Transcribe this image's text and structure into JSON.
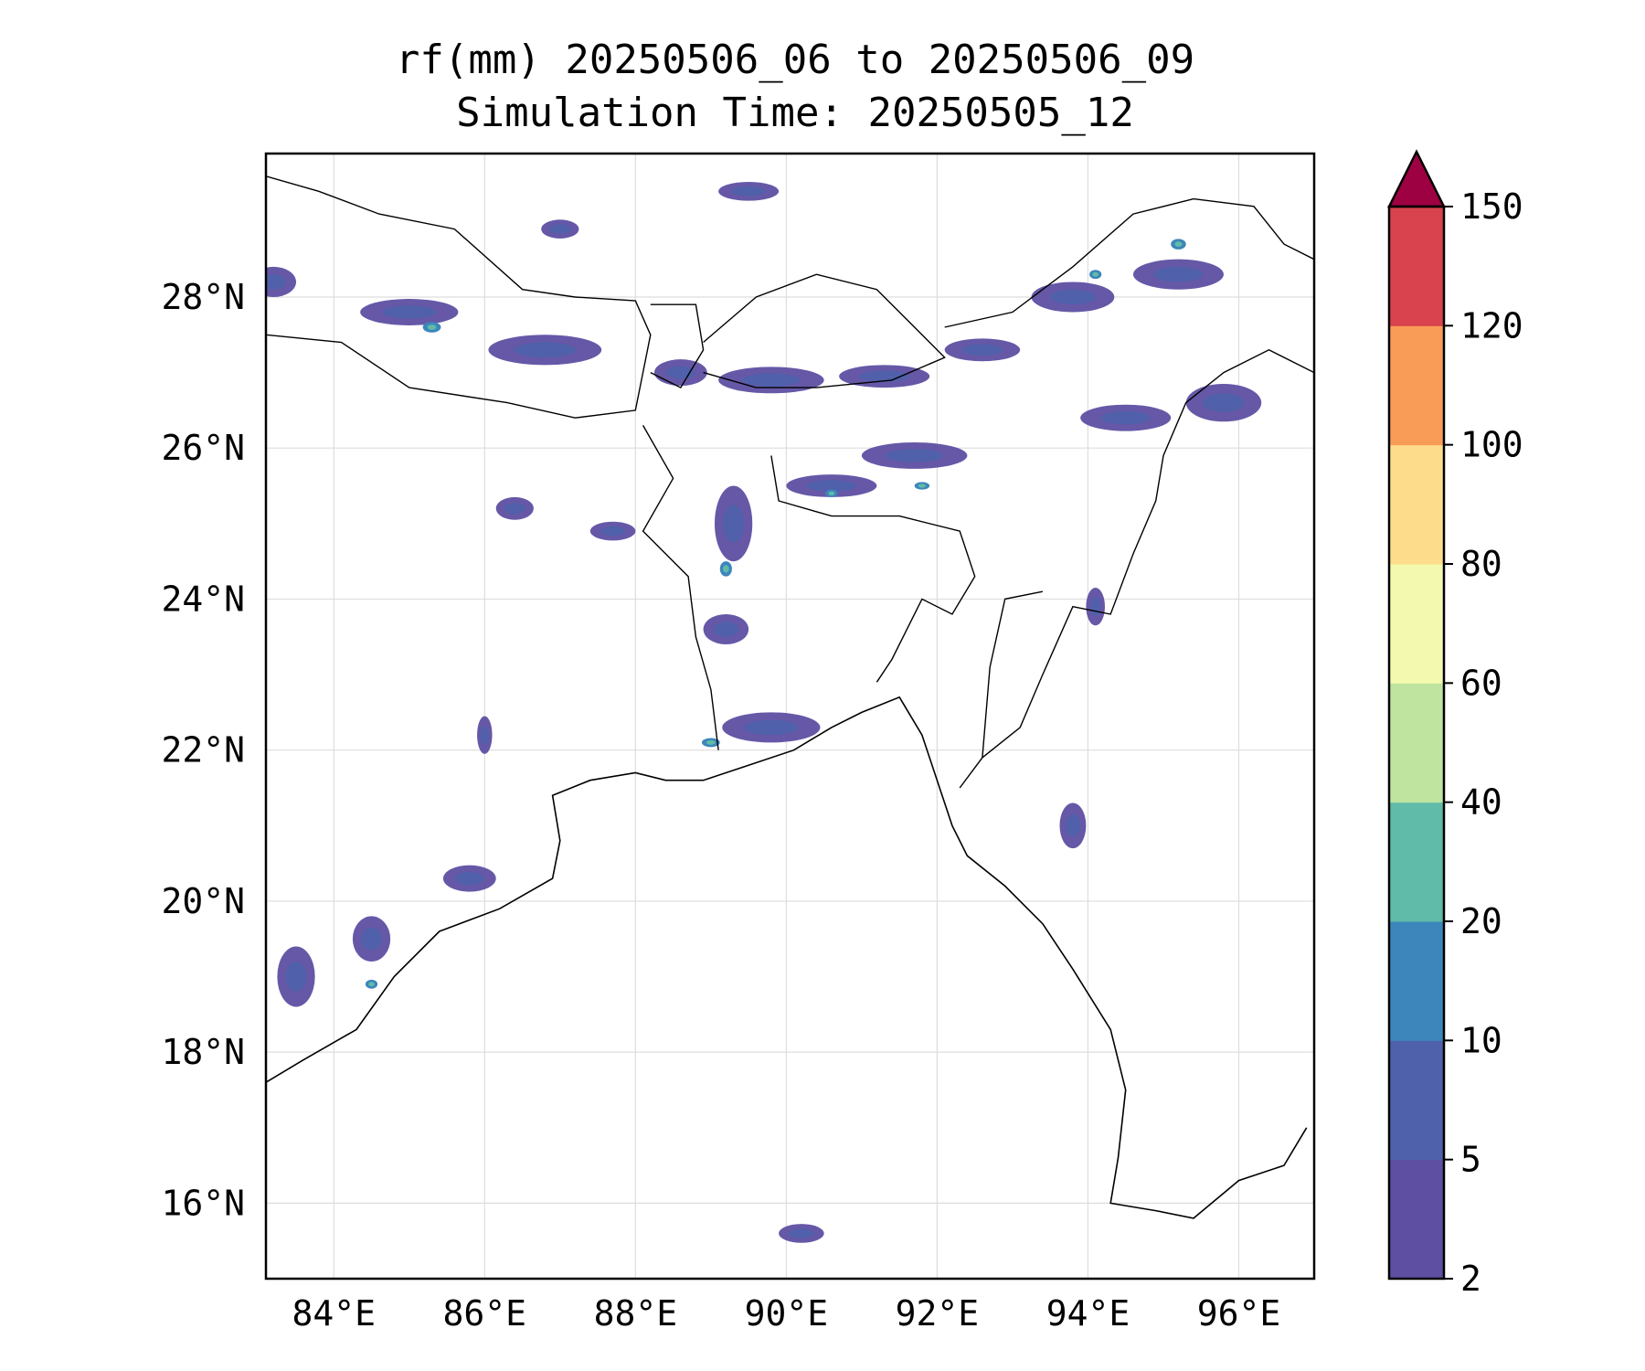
{
  "title": {
    "line1": "rf(mm) 20250506_06 to 20250506_09",
    "line2": "Simulation Time: 20250505_12"
  },
  "map": {
    "extent": {
      "lon": [
        83.1,
        97.0
      ],
      "lat": [
        15.0,
        29.9
      ]
    },
    "lat_ticks": [
      "16°N",
      "18°N",
      "20°N",
      "22°N",
      "24°N",
      "26°N",
      "28°N"
    ],
    "lon_ticks": [
      "84°E",
      "86°E",
      "88°E",
      "90°E",
      "92°E",
      "94°E",
      "96°E"
    ],
    "grid": true
  },
  "colorbar": {
    "levels": [
      "2",
      "5",
      "10",
      "20",
      "40",
      "60",
      "80",
      "100",
      "120",
      "150"
    ],
    "colors": [
      "#5e4fa2",
      "#4f61aa",
      "#3c86bb",
      "#60bba8",
      "#bee4a0",
      "#f3f9ae",
      "#fddd8b",
      "#f99c58",
      "#d8434e",
      "#9e0142"
    ],
    "extend": "max"
  },
  "rainfall_patches_lonlat": [
    [
      83.2,
      28.2,
      0.6,
      0.4
    ],
    [
      85.0,
      27.8,
      1.3,
      0.35
    ],
    [
      86.8,
      27.3,
      1.5,
      0.4
    ],
    [
      88.6,
      27.0,
      0.7,
      0.35
    ],
    [
      89.8,
      26.9,
      1.4,
      0.35
    ],
    [
      91.3,
      26.95,
      1.2,
      0.3
    ],
    [
      92.6,
      27.3,
      1.0,
      0.3
    ],
    [
      93.8,
      28.0,
      1.1,
      0.4
    ],
    [
      95.2,
      28.3,
      1.2,
      0.4
    ],
    [
      94.5,
      26.4,
      1.2,
      0.35
    ],
    [
      95.8,
      26.6,
      1.0,
      0.5
    ],
    [
      91.7,
      25.9,
      1.4,
      0.35
    ],
    [
      90.6,
      25.5,
      1.2,
      0.3
    ],
    [
      89.3,
      25.0,
      0.5,
      1.0
    ],
    [
      87.7,
      24.9,
      0.6,
      0.25
    ],
    [
      86.4,
      25.2,
      0.5,
      0.3
    ],
    [
      89.2,
      23.6,
      0.6,
      0.4
    ],
    [
      89.8,
      22.3,
      1.3,
      0.4
    ],
    [
      93.8,
      21.0,
      0.35,
      0.6
    ],
    [
      94.1,
      23.9,
      0.25,
      0.5
    ],
    [
      86.0,
      22.2,
      0.2,
      0.5
    ],
    [
      83.5,
      19.0,
      0.5,
      0.8
    ],
    [
      84.5,
      19.5,
      0.5,
      0.6
    ],
    [
      85.8,
      20.3,
      0.7,
      0.35
    ],
    [
      90.2,
      15.6,
      0.6,
      0.25
    ],
    [
      87.0,
      28.9,
      0.5,
      0.25
    ],
    [
      89.5,
      29.4,
      0.8,
      0.25
    ]
  ],
  "rainfall_cores_lonlat": [
    [
      85.3,
      27.6,
      0.12,
      0.07
    ],
    [
      89.0,
      22.1,
      0.12,
      0.06
    ],
    [
      95.2,
      28.7,
      0.1,
      0.07
    ],
    [
      91.8,
      25.5,
      0.1,
      0.05
    ],
    [
      90.6,
      25.4,
      0.08,
      0.05
    ],
    [
      84.5,
      18.9,
      0.08,
      0.06
    ],
    [
      94.1,
      28.3,
      0.08,
      0.06
    ],
    [
      89.2,
      24.4,
      0.08,
      0.1
    ]
  ],
  "coastlines_lonlat": [
    [
      [
        83.1,
        17.6
      ],
      [
        83.6,
        17.9
      ],
      [
        84.3,
        18.3
      ],
      [
        84.8,
        19.0
      ],
      [
        85.4,
        19.6
      ],
      [
        86.2,
        19.9
      ],
      [
        86.9,
        20.3
      ],
      [
        87.0,
        20.8
      ],
      [
        86.9,
        21.4
      ],
      [
        87.4,
        21.6
      ],
      [
        88.0,
        21.7
      ],
      [
        88.4,
        21.6
      ],
      [
        88.9,
        21.6
      ],
      [
        89.5,
        21.8
      ],
      [
        90.1,
        22.0
      ],
      [
        90.6,
        22.3
      ],
      [
        91.0,
        22.5
      ],
      [
        91.5,
        22.7
      ],
      [
        91.8,
        22.2
      ],
      [
        92.0,
        21.6
      ],
      [
        92.2,
        21.0
      ],
      [
        92.4,
        20.6
      ],
      [
        92.9,
        20.2
      ],
      [
        93.4,
        19.7
      ],
      [
        93.8,
        19.1
      ],
      [
        94.3,
        18.3
      ],
      [
        94.5,
        17.5
      ],
      [
        94.4,
        16.6
      ],
      [
        94.3,
        16.0
      ],
      [
        94.9,
        15.9
      ],
      [
        95.4,
        15.8
      ],
      [
        96.0,
        16.3
      ],
      [
        96.6,
        16.5
      ],
      [
        96.9,
        17.0
      ]
    ]
  ],
  "borders_lonlat": [
    [
      [
        83.1,
        29.6
      ],
      [
        83.8,
        29.4
      ],
      [
        84.6,
        29.1
      ],
      [
        85.6,
        28.9
      ],
      [
        86.5,
        28.1
      ],
      [
        87.2,
        28.0
      ],
      [
        88.0,
        27.95
      ],
      [
        88.2,
        27.5
      ],
      [
        88.0,
        26.5
      ],
      [
        87.2,
        26.4
      ],
      [
        86.3,
        26.6
      ],
      [
        85.0,
        26.8
      ],
      [
        84.1,
        27.4
      ],
      [
        83.1,
        27.5
      ]
    ],
    [
      [
        88.2,
        27.9
      ],
      [
        88.8,
        27.9
      ],
      [
        88.9,
        27.3
      ],
      [
        88.6,
        26.8
      ],
      [
        88.2,
        27.0
      ]
    ],
    [
      [
        88.9,
        27.4
      ],
      [
        89.6,
        28.0
      ],
      [
        90.4,
        28.3
      ],
      [
        91.2,
        28.1
      ],
      [
        91.7,
        27.6
      ],
      [
        92.1,
        27.2
      ],
      [
        91.4,
        26.9
      ],
      [
        90.4,
        26.8
      ],
      [
        89.6,
        26.8
      ],
      [
        88.9,
        27.0
      ]
    ],
    [
      [
        92.1,
        27.6
      ],
      [
        93.0,
        27.8
      ],
      [
        93.8,
        28.4
      ],
      [
        94.6,
        29.1
      ],
      [
        95.4,
        29.3
      ],
      [
        96.2,
        29.2
      ],
      [
        96.6,
        28.7
      ],
      [
        97.0,
        28.5
      ]
    ],
    [
      [
        97.0,
        27.0
      ],
      [
        96.4,
        27.3
      ],
      [
        95.8,
        27.0
      ],
      [
        95.3,
        26.6
      ],
      [
        95.0,
        25.9
      ],
      [
        94.9,
        25.3
      ],
      [
        94.6,
        24.6
      ],
      [
        94.3,
        23.8
      ],
      [
        93.8,
        23.9
      ],
      [
        93.4,
        23.0
      ],
      [
        93.1,
        22.3
      ],
      [
        92.6,
        21.9
      ],
      [
        92.3,
        21.5
      ]
    ],
    [
      [
        88.1,
        26.3
      ],
      [
        88.5,
        25.6
      ],
      [
        88.1,
        24.9
      ],
      [
        88.7,
        24.3
      ],
      [
        88.8,
        23.5
      ],
      [
        89.0,
        22.8
      ],
      [
        89.1,
        22.0
      ]
    ],
    [
      [
        89.8,
        25.9
      ],
      [
        89.9,
        25.3
      ],
      [
        90.6,
        25.1
      ],
      [
        91.5,
        25.1
      ],
      [
        92.3,
        24.9
      ],
      [
        92.5,
        24.3
      ],
      [
        92.2,
        23.8
      ],
      [
        91.8,
        24.0
      ],
      [
        91.4,
        23.2
      ],
      [
        91.2,
        22.9
      ]
    ],
    [
      [
        92.6,
        21.9
      ],
      [
        92.7,
        23.1
      ],
      [
        92.9,
        24.0
      ],
      [
        93.4,
        24.1
      ]
    ]
  ]
}
